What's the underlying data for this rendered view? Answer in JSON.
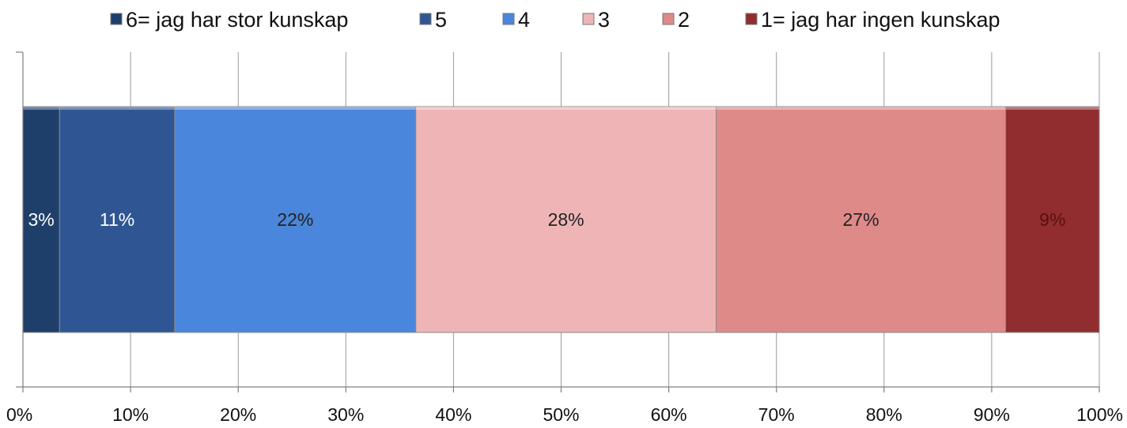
{
  "chart_data": {
    "type": "bar",
    "orientation": "horizontal",
    "stacked": "percent",
    "categories": [
      ""
    ],
    "series": [
      {
        "name": "6= jag har stor kunskap",
        "values": [
          3.4
        ],
        "label": "3%",
        "color": "#1f3f6b",
        "label_color": "#ffffff"
      },
      {
        "name": "5",
        "values": [
          10.7
        ],
        "label": "11%",
        "color": "#2f5693",
        "label_color": "#ffffff"
      },
      {
        "name": "4",
        "values": [
          22.4
        ],
        "label": "22%",
        "color": "#4a86dc",
        "label_color": "#222222"
      },
      {
        "name": "3",
        "values": [
          27.9
        ],
        "label": "28%",
        "color": "#efb5b6",
        "label_color": "#222222"
      },
      {
        "name": "2",
        "values": [
          26.9
        ],
        "label": "27%",
        "color": "#de8a89",
        "label_color": "#222222"
      },
      {
        "name": "1= jag har ingen kunskap",
        "values": [
          8.7
        ],
        "label": "9%",
        "color": "#912d2f",
        "label_color": "#5a1010"
      }
    ],
    "xaxis": {
      "ticks": [
        0,
        10,
        20,
        30,
        40,
        50,
        60,
        70,
        80,
        90,
        100
      ],
      "tick_labels": [
        "0%",
        "10%",
        "20%",
        "30%",
        "40%",
        "50%",
        "60%",
        "70%",
        "80%",
        "90%",
        "100%"
      ],
      "xlim": [
        0,
        100
      ]
    },
    "grid": true,
    "legend": "top"
  }
}
